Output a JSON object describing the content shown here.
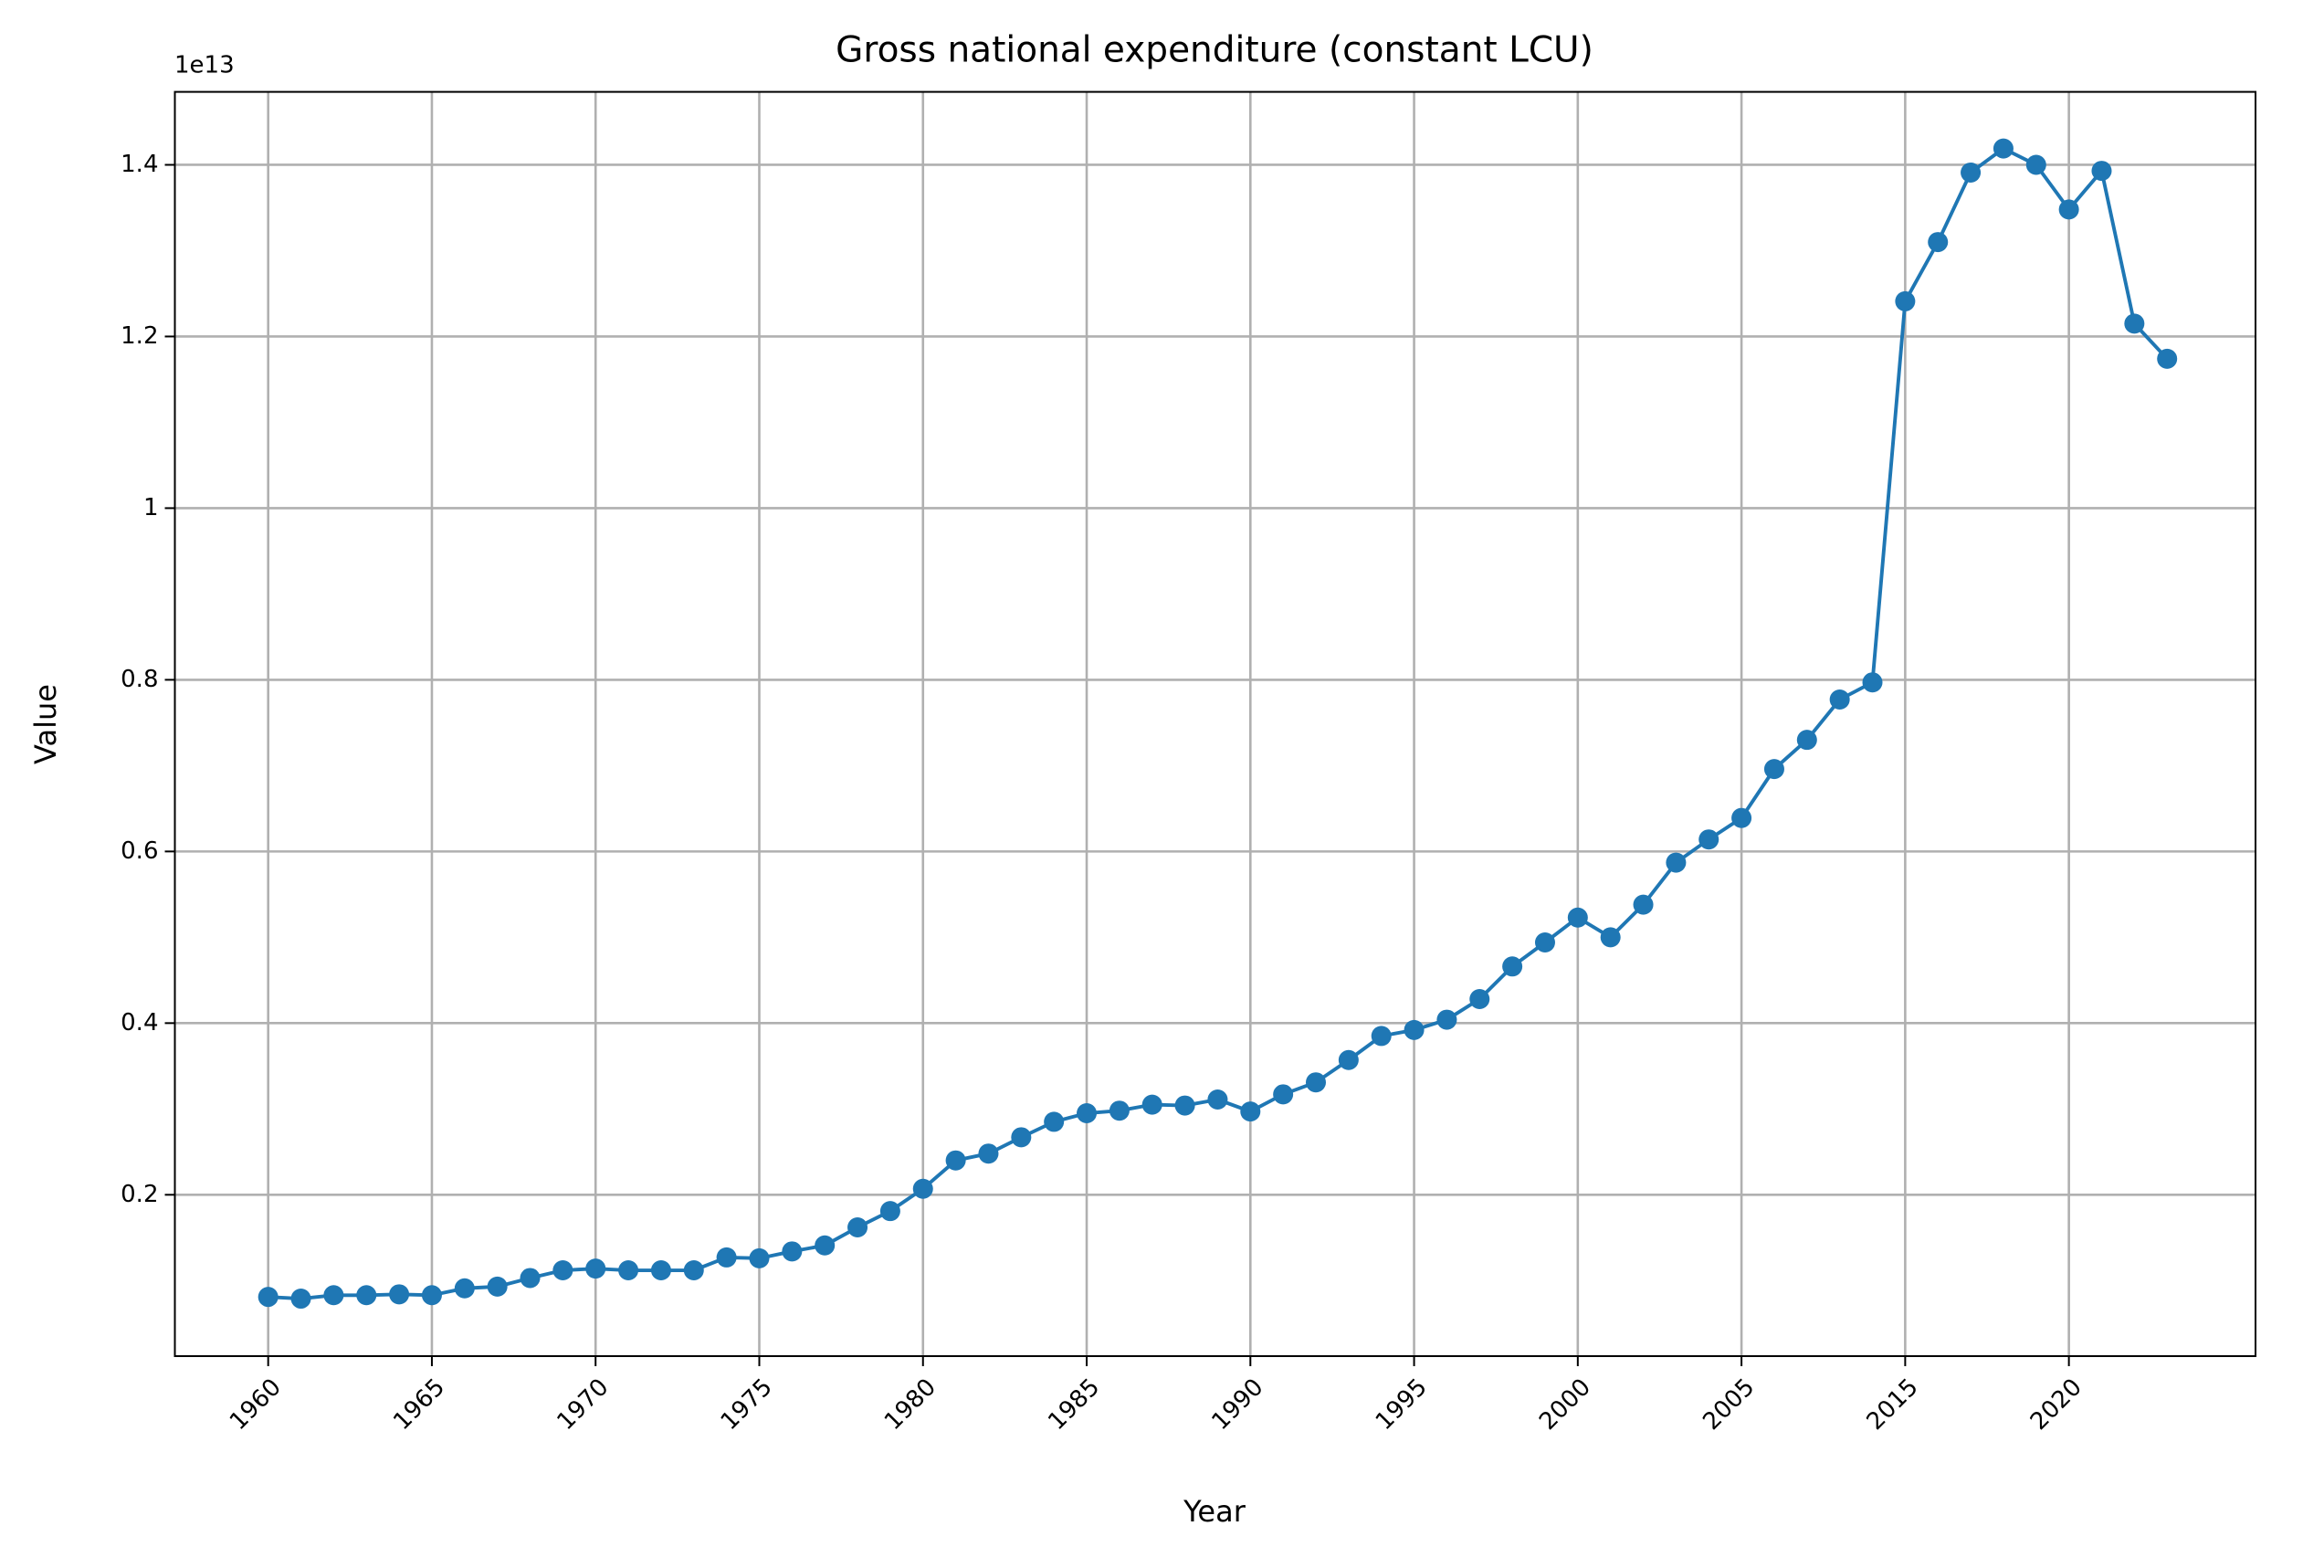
{
  "chart_data": {
    "type": "line",
    "title": "Gross national expenditure (constant LCU)",
    "x_label": "Year",
    "y_label": "Value",
    "y_offset_label": "1e13",
    "categories": [
      "1960",
      null,
      null,
      null,
      null,
      "1965",
      null,
      null,
      null,
      null,
      "1970",
      null,
      null,
      null,
      null,
      "1975",
      null,
      null,
      null,
      null,
      "1980",
      null,
      null,
      null,
      null,
      "1985",
      null,
      null,
      null,
      null,
      "1990",
      null,
      null,
      null,
      null,
      "1995",
      null,
      null,
      null,
      null,
      "2000",
      null,
      null,
      null,
      null,
      "2005",
      null,
      null,
      null,
      null,
      "2015",
      null,
      null,
      null,
      null,
      "2020",
      null,
      null,
      null
    ],
    "series": [
      {
        "name": "Gross national expenditure (constant LCU)",
        "color": "#1f77b4",
        "values": [
          0.081,
          0.079,
          0.083,
          0.083,
          0.084,
          0.083,
          0.091,
          0.093,
          0.103,
          0.112,
          0.114,
          0.112,
          0.112,
          0.112,
          0.127,
          0.126,
          0.134,
          0.141,
          0.162,
          0.181,
          0.207,
          0.24,
          0.248,
          0.267,
          0.285,
          0.295,
          0.298,
          0.305,
          0.304,
          0.311,
          0.297,
          0.317,
          0.331,
          0.357,
          0.385,
          0.392,
          0.404,
          0.428,
          0.466,
          0.494,
          0.523,
          0.5,
          0.538,
          0.587,
          0.614,
          0.639,
          0.696,
          0.73,
          0.777,
          0.797,
          1.241,
          1.31,
          1.391,
          1.419,
          1.4,
          1.348,
          1.393,
          1.215,
          1.174
        ]
      }
    ],
    "ylim": [
      0.012,
      1.485
    ],
    "yticks": [
      0.2,
      0.4,
      0.6,
      0.8,
      1.0,
      1.2,
      1.4
    ],
    "grid": true
  }
}
